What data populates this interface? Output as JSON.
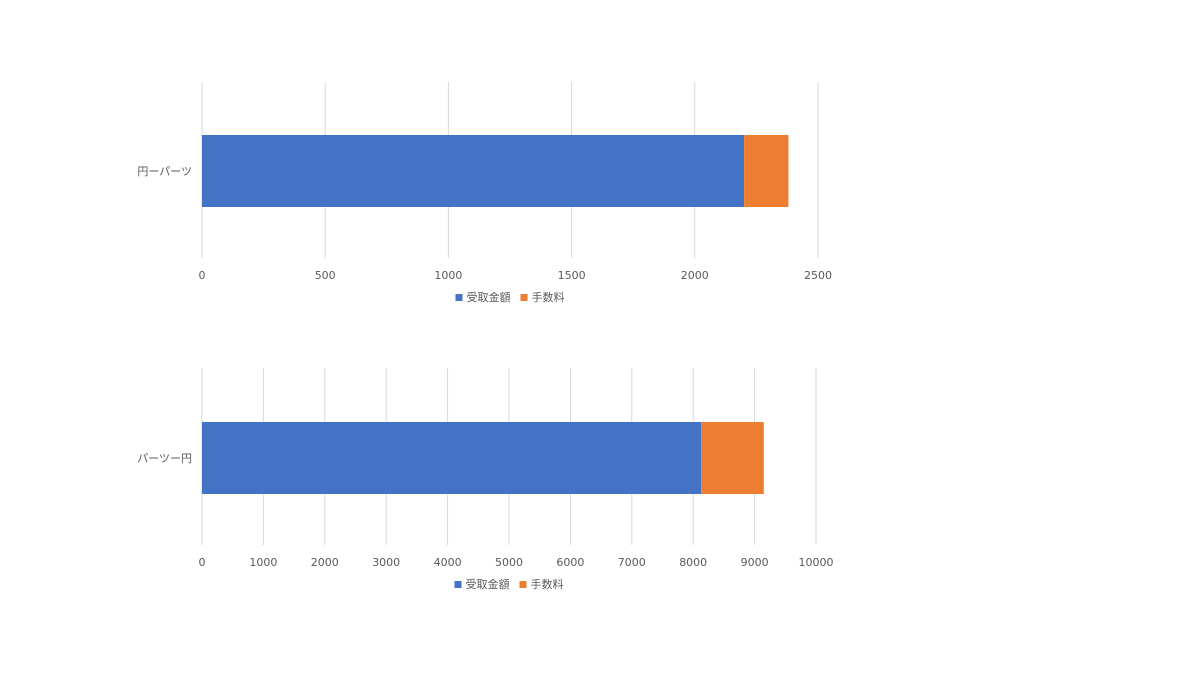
{
  "colors": {
    "series_0": "#4472C4",
    "series_1": "#ED7D31",
    "grid": "#D9D9D9",
    "text": "#595959"
  },
  "chart_data": [
    {
      "type": "bar",
      "orientation": "horizontal",
      "stacked": true,
      "categories": [
        "円ーパーツ"
      ],
      "series": [
        {
          "name": "受取金額",
          "values": [
            2200
          ]
        },
        {
          "name": "手数料",
          "values": [
            180
          ]
        }
      ],
      "xlim": [
        0,
        2500
      ],
      "xticks": [
        0,
        500,
        1000,
        1500,
        2000,
        2500
      ],
      "grid": true,
      "legend": "bottom"
    },
    {
      "type": "bar",
      "orientation": "horizontal",
      "stacked": true,
      "categories": [
        "パーツー円"
      ],
      "series": [
        {
          "name": "受取金額",
          "values": [
            8130
          ]
        },
        {
          "name": "手数料",
          "values": [
            1020
          ]
        }
      ],
      "xlim": [
        0,
        10000
      ],
      "xticks": [
        0,
        1000,
        2000,
        3000,
        4000,
        5000,
        6000,
        7000,
        8000,
        9000,
        10000
      ],
      "grid": true,
      "legend": "bottom"
    }
  ]
}
